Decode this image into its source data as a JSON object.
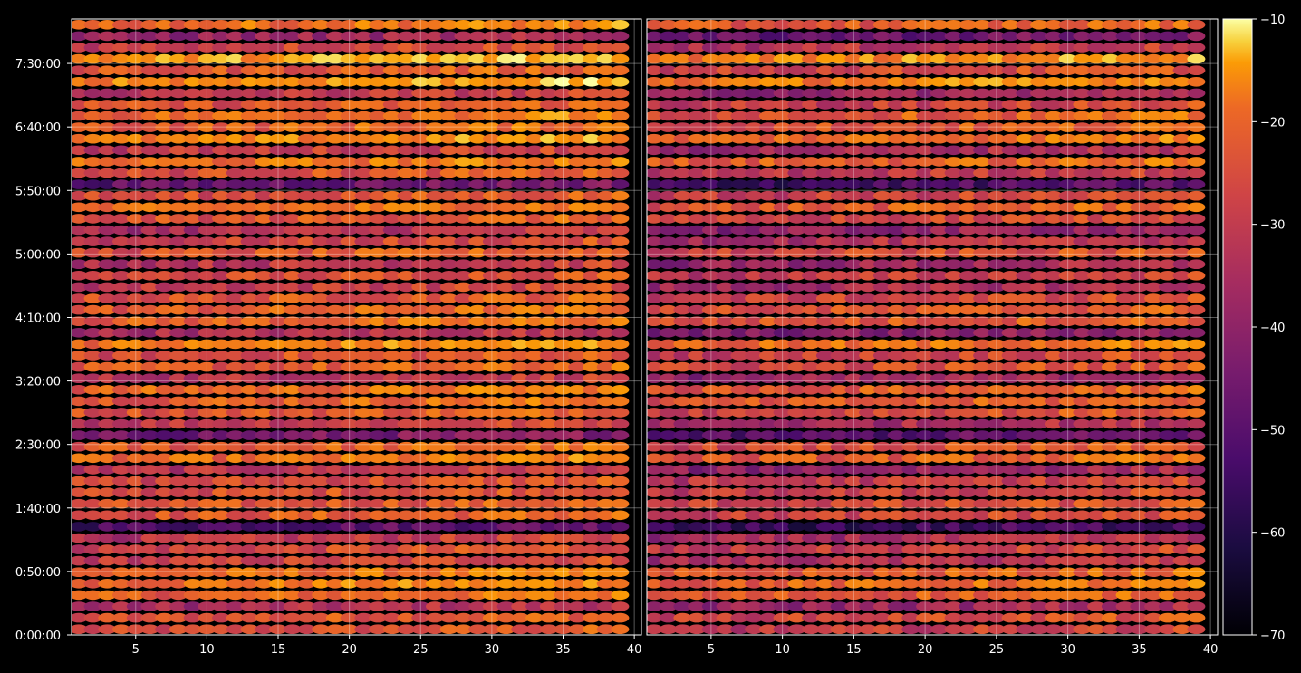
{
  "chart_data": {
    "type": "heatmap",
    "title": "",
    "xlabel": "",
    "ylabel": "",
    "panels": [
      {
        "name": "",
        "xlim": [
          1,
          40
        ],
        "x_ticks": [
          "5",
          "10",
          "15",
          "20",
          "25",
          "30",
          "35",
          "40"
        ]
      },
      {
        "name": "",
        "xlim": [
          1,
          40
        ],
        "x_ticks": [
          "5",
          "10",
          "15",
          "20",
          "25",
          "30",
          "35",
          "40"
        ]
      }
    ],
    "y_ticks": [
      "0:00:00",
      "0:50:00",
      "1:40:00",
      "2:30:00",
      "3:20:00",
      "4:10:00",
      "5:00:00",
      "5:50:00",
      "6:40:00",
      "7:30:00"
    ],
    "y_tick_seconds": [
      0,
      3000,
      6000,
      9000,
      12000,
      15000,
      18000,
      21000,
      24000,
      27000
    ],
    "ylim_seconds": [
      0,
      29100
    ],
    "row_count": 54,
    "columns_per_panel": 39,
    "grid": true,
    "colorbar": {
      "colormap": "inferno",
      "min": -70,
      "max": -10,
      "ticks": [
        "−10",
        "−20",
        "−30",
        "−40",
        "−50",
        "−60",
        "−70"
      ],
      "tick_values": [
        -10,
        -20,
        -30,
        -40,
        -50,
        -60,
        -70
      ]
    },
    "row_levels_left": [
      -33,
      -31,
      -41,
      -28,
      -25,
      -27,
      -35,
      -34,
      -38,
      -55,
      -30,
      -31,
      -32,
      -33,
      -38,
      -27,
      -29,
      -50,
      -36,
      -30,
      -28,
      -27,
      -38,
      -30,
      -32,
      -24,
      -40,
      -28,
      -29,
      -31,
      -36,
      -33,
      -38,
      -31,
      -35,
      -40,
      -31,
      -27,
      -32,
      -52,
      -32,
      -26,
      -36,
      -24,
      -28,
      -26,
      -31,
      -38,
      -21,
      -30,
      -20,
      -34,
      -44,
      -26
    ],
    "row_levels_right": [
      -37,
      -34,
      -44,
      -30,
      -28,
      -30,
      -40,
      -37,
      -42,
      -60,
      -35,
      -34,
      -36,
      -37,
      -45,
      -30,
      -33,
      -55,
      -42,
      -33,
      -31,
      -30,
      -44,
      -33,
      -35,
      -27,
      -48,
      -31,
      -32,
      -35,
      -42,
      -37,
      -44,
      -34,
      -40,
      -46,
      -35,
      -30,
      -36,
      -58,
      -38,
      -29,
      -42,
      -27,
      -31,
      -30,
      -36,
      -44,
      -24,
      -34,
      -23,
      -39,
      -52,
      -30
    ]
  }
}
